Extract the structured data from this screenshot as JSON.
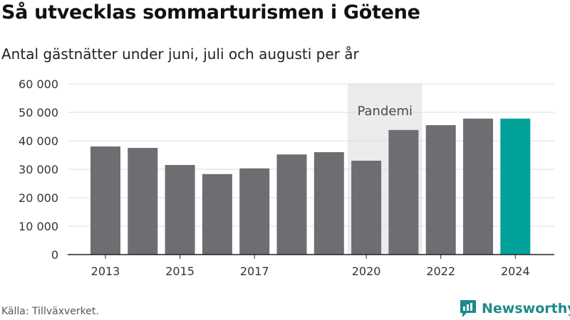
{
  "header": {
    "title": "Så utvecklas sommarturismen i Götene",
    "subtitle": "Antal gästnätter under juni, juli och augusti per år"
  },
  "footer": {
    "source": "Källa: Tillväxverket.",
    "brand": "Newsworthy",
    "brand_icon": "newsworthy-logo-icon"
  },
  "chart_data": {
    "type": "bar",
    "categories": [
      "2013",
      "2014",
      "2015",
      "2016",
      "2017",
      "2018",
      "2019",
      "2020",
      "2021",
      "2022",
      "2023",
      "2024"
    ],
    "values": [
      38000,
      37500,
      31500,
      28300,
      30300,
      35200,
      36000,
      33000,
      43800,
      45500,
      47800,
      47800
    ],
    "x_tick_labels": [
      "2013",
      "2015",
      "2017",
      "2020",
      "2022",
      "2024"
    ],
    "y_ticks": [
      0,
      10000,
      20000,
      30000,
      40000,
      50000,
      60000
    ],
    "y_tick_labels": [
      "0",
      "10 000",
      "20 000",
      "30 000",
      "40 000",
      "50 000",
      "60 000"
    ],
    "ylim": [
      0,
      60000
    ],
    "grid": true,
    "annotation": {
      "label": "Pandemi",
      "from": "2020",
      "to": "2021"
    },
    "colors": {
      "bar": "#6e6d72",
      "highlight": "#00a29a",
      "pandemic_band": "#ececec",
      "grid": "#dcdcdc"
    },
    "highlight_category": "2024"
  }
}
